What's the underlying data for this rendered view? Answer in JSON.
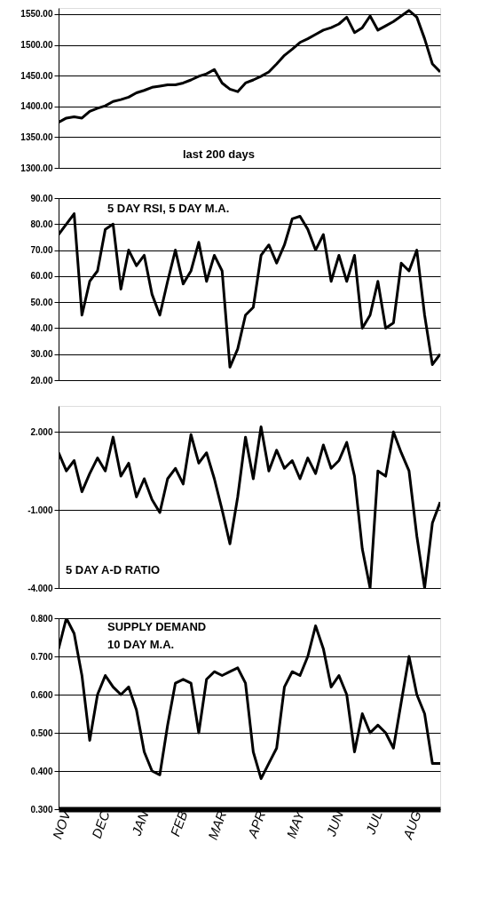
{
  "chart_data": [
    {
      "type": "line",
      "annotations": [
        "last 200 days"
      ],
      "tick_labels": "y",
      "grid": "y",
      "categories": [
        null,
        null,
        null,
        null,
        null,
        null,
        null,
        null,
        null,
        null,
        null,
        null,
        null,
        null,
        null,
        null,
        null,
        null,
        null,
        null,
        null,
        null,
        null,
        null,
        null,
        null,
        null,
        null,
        null,
        null,
        null,
        null,
        null,
        null,
        null,
        null,
        null,
        null,
        null,
        null,
        null,
        null,
        null,
        null,
        null,
        null,
        null,
        null,
        null,
        null
      ],
      "series": [
        {
          "color": "#000000",
          "values": [
            1374,
            1381,
            1383,
            1381,
            1392,
            1397,
            1401,
            1408,
            1411,
            1415,
            1422,
            1426,
            1431,
            1433,
            1435,
            1435,
            1438,
            1443,
            1449,
            1453,
            1460,
            1438,
            1428,
            1424,
            1438,
            1443,
            1449,
            1456,
            1469,
            1483,
            1493,
            1504,
            1510,
            1517,
            1524,
            1528,
            1534,
            1545,
            1520,
            1528,
            1547,
            1524,
            1531,
            1538,
            1547,
            1556,
            1545,
            1510,
            1469,
            1456
          ]
        }
      ],
      "ylim": [
        1300,
        1560
      ],
      "yticks": [
        {
          "value": 1300,
          "label": "1300.00"
        },
        {
          "value": 1350,
          "label": "1350.00"
        },
        {
          "value": 1400,
          "label": "1400.00"
        },
        {
          "value": 1450,
          "label": "1450.00"
        },
        {
          "value": 1500,
          "label": "1500.00"
        },
        {
          "value": 1550,
          "label": "1550.00"
        }
      ]
    },
    {
      "type": "line",
      "annotations": [
        "5 DAY RSI, 5 DAY M.A."
      ],
      "tick_labels": "y",
      "grid": "y",
      "categories": [
        null,
        null,
        null,
        null,
        null,
        null,
        null,
        null,
        null,
        null,
        null,
        null,
        null,
        null,
        null,
        null,
        null,
        null,
        null,
        null,
        null,
        null,
        null,
        null,
        null,
        null,
        null,
        null,
        null,
        null,
        null,
        null,
        null,
        null,
        null,
        null,
        null,
        null,
        null,
        null,
        null,
        null,
        null,
        null,
        null,
        null,
        null,
        null,
        null,
        null
      ],
      "series": [
        {
          "color": "#000000",
          "values": [
            76,
            80,
            84,
            45,
            58,
            62,
            78,
            80,
            55,
            70,
            64,
            68,
            53,
            45,
            58,
            70,
            57,
            62,
            73,
            58,
            68,
            62,
            25,
            32,
            45,
            48,
            68,
            72,
            65,
            72,
            82,
            83,
            78,
            70,
            76,
            58,
            68,
            58,
            68,
            40,
            45,
            58,
            40,
            42,
            65,
            62,
            70,
            45,
            26,
            30
          ]
        }
      ],
      "ylim": [
        20,
        90
      ],
      "yticks": [
        {
          "value": 20,
          "label": "20.00"
        },
        {
          "value": 30,
          "label": "30.00"
        },
        {
          "value": 40,
          "label": "40.00"
        },
        {
          "value": 50,
          "label": "50.00"
        },
        {
          "value": 60,
          "label": "60.00"
        },
        {
          "value": 70,
          "label": "70.00"
        },
        {
          "value": 80,
          "label": "80.00"
        },
        {
          "value": 90,
          "label": "90.00"
        }
      ]
    },
    {
      "type": "line",
      "annotations": [
        "5 DAY A-D RATIO"
      ],
      "tick_labels": "y",
      "grid": "y",
      "categories": [
        null,
        null,
        null,
        null,
        null,
        null,
        null,
        null,
        null,
        null,
        null,
        null,
        null,
        null,
        null,
        null,
        null,
        null,
        null,
        null,
        null,
        null,
        null,
        null,
        null,
        null,
        null,
        null,
        null,
        null,
        null,
        null,
        null,
        null,
        null,
        null,
        null,
        null,
        null,
        null,
        null,
        null,
        null,
        null,
        null,
        null,
        null,
        null,
        null,
        null
      ],
      "series": [
        {
          "color": "#000000",
          "values": [
            1.2,
            0.5,
            0.9,
            -0.3,
            0.4,
            1.0,
            0.5,
            1.8,
            0.3,
            0.8,
            -0.5,
            0.2,
            -0.6,
            -1.1,
            0.2,
            0.6,
            0.0,
            1.9,
            0.8,
            1.2,
            0.2,
            -1.0,
            -2.3,
            -0.5,
            1.8,
            0.2,
            2.2,
            0.5,
            1.3,
            0.6,
            0.9,
            0.2,
            1.0,
            0.4,
            1.5,
            0.6,
            0.9,
            1.6,
            0.3,
            -2.5,
            -4.0,
            0.5,
            0.3,
            2.0,
            1.2,
            0.5,
            -2.0,
            -4.0,
            -1.5,
            -0.7
          ]
        }
      ],
      "ylim": [
        -4,
        3
      ],
      "yticks": [
        {
          "value": -4,
          "label": "-4.000"
        },
        {
          "value": -1,
          "label": "-1.000"
        },
        {
          "value": 2,
          "label": "2.000"
        }
      ]
    },
    {
      "type": "line",
      "annotations": [
        "SUPPLY DEMAND",
        "10 DAY M.A."
      ],
      "grid": "y",
      "categories": [
        null,
        "NOV",
        null,
        null,
        null,
        null,
        "DEC",
        null,
        null,
        null,
        null,
        "JAN",
        null,
        null,
        null,
        null,
        "FEB",
        null,
        null,
        null,
        null,
        "MAR",
        null,
        null,
        null,
        null,
        "APR",
        null,
        null,
        null,
        null,
        "MAY",
        null,
        null,
        null,
        null,
        "JUN",
        null,
        null,
        null,
        null,
        "JUL",
        null,
        null,
        null,
        null,
        "AUG",
        null,
        null,
        null
      ],
      "series": [
        {
          "color": "#000000",
          "values": [
            0.72,
            0.8,
            0.76,
            0.65,
            0.48,
            0.6,
            0.65,
            0.62,
            0.6,
            0.62,
            0.56,
            0.45,
            0.4,
            0.39,
            0.52,
            0.63,
            0.64,
            0.63,
            0.5,
            0.64,
            0.66,
            0.65,
            0.66,
            0.67,
            0.63,
            0.45,
            0.38,
            0.42,
            0.46,
            0.62,
            0.66,
            0.65,
            0.7,
            0.78,
            0.72,
            0.62,
            0.65,
            0.6,
            0.45,
            0.55,
            0.5,
            0.52,
            0.5,
            0.46,
            0.58,
            0.7,
            0.6,
            0.55,
            0.42,
            0.42
          ]
        }
      ],
      "ylim": [
        0.3,
        0.8
      ],
      "yticks": [
        {
          "value": 0.3,
          "label": "0.300"
        },
        {
          "value": 0.4,
          "label": "0.400"
        },
        {
          "value": 0.5,
          "label": "0.500"
        },
        {
          "value": 0.6,
          "label": "0.600"
        },
        {
          "value": 0.7,
          "label": "0.700"
        },
        {
          "value": 0.8,
          "label": "0.800"
        }
      ]
    }
  ]
}
